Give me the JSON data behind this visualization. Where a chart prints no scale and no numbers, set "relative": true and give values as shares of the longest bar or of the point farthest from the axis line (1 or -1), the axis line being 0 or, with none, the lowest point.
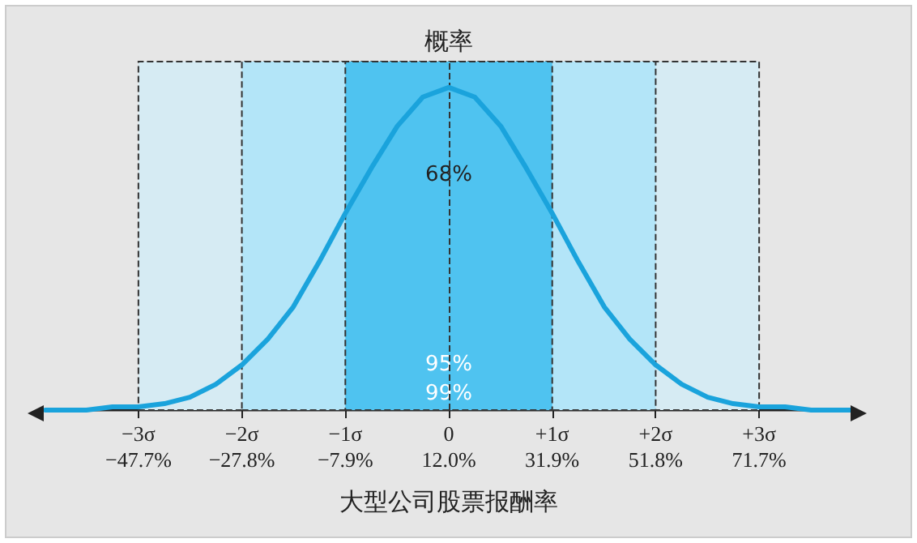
{
  "chart_data": {
    "type": "line",
    "relative": true,
    "xlabel": "大型公司股票报酬率",
    "ylabel": "概率",
    "series": [
      {
        "color": "#1aa3dc",
        "x": [
          -65.6,
          -57.7,
          -52.7,
          -47.7,
          -42.7,
          -37.8,
          -32.8,
          -27.8,
          -22.8,
          -17.9,
          -12.9,
          -7.9,
          -2.9,
          2.1,
          7.0,
          12.0,
          17.0,
          22.0,
          26.9,
          31.9,
          36.9,
          41.9,
          46.8,
          51.8,
          56.8,
          61.8,
          66.7,
          71.7,
          76.7,
          81.7,
          89.6
        ],
        "values": [
          0,
          0,
          0.01,
          0.01,
          0.02,
          0.04,
          0.08,
          0.14,
          0.22,
          0.32,
          0.46,
          0.61,
          0.75,
          0.88,
          0.97,
          1,
          0.97,
          0.88,
          0.75,
          0.61,
          0.46,
          0.32,
          0.22,
          0.14,
          0.08,
          0.04,
          0.02,
          0.01,
          0.01,
          0,
          0
        ]
      }
    ],
    "xlim": [
      -65.6,
      89.6
    ],
    "xticks": [
      {
        "value": -47.7,
        "label": "−47.7%"
      },
      {
        "value": -27.8,
        "label": "−27.8%"
      },
      {
        "value": -7.9,
        "label": "−7.9%"
      },
      {
        "value": 12.0,
        "label": "12.0%"
      },
      {
        "value": 31.9,
        "label": "31.9%"
      },
      {
        "value": 51.8,
        "label": "51.8%"
      },
      {
        "value": 71.7,
        "label": "71.7%"
      }
    ],
    "x2lim": [
      -3.9,
      3.9
    ],
    "x2ticks": [
      {
        "value": -3,
        "label": "−3σ"
      },
      {
        "value": -2,
        "label": "−2σ"
      },
      {
        "value": -1,
        "label": "−1σ"
      },
      0,
      {
        "value": 1,
        "label": "+1σ"
      },
      {
        "value": 2,
        "label": "+2σ"
      },
      {
        "value": 3,
        "label": "+3σ"
      }
    ],
    "bands": [
      {
        "axis": "x",
        "from": -7.9,
        "to": 31.9,
        "label": "68%",
        "color": "#4fc3f0"
      },
      {
        "axis": "x",
        "from": -27.8,
        "to": 51.8,
        "label": "95%",
        "color": "#b3e5f8"
      },
      {
        "axis": "x",
        "from": -47.7,
        "to": 71.7,
        "label": "99%",
        "color": "#d6ebf3"
      }
    ],
    "ref_lines": [
      {
        "axis": "x",
        "value": 12.0,
        "line_style": "dashed"
      }
    ],
    "line_style": "solid",
    "marker": "none",
    "grid": false
  }
}
